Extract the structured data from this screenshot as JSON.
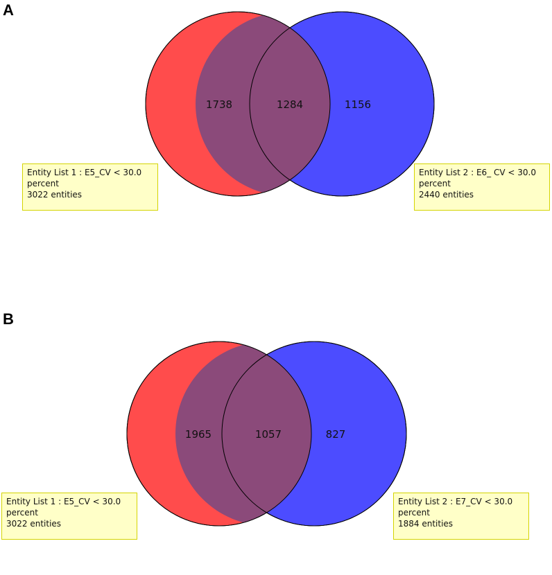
{
  "panels": [
    {
      "label": "A",
      "set1": {
        "color": "#ff4c4c",
        "name": "Entity List 1 : E5_CV < 30.0",
        "line2": "percent",
        "entities": "3022 entities"
      },
      "set2": {
        "color": "#4c4cff",
        "name": "Entity List 2 : E6_ CV < 30.0",
        "line2": "percent",
        "entities": "2440 entities"
      },
      "overlap_color": "#8b4a7a",
      "counts": {
        "only1": "1738",
        "both": "1284",
        "only2": "1156"
      }
    },
    {
      "label": "B",
      "set1": {
        "color": "#ff4c4c",
        "name": "Entity List 1 : E5_CV < 30.0",
        "line2": "percent",
        "entities": "3022 entities"
      },
      "set2": {
        "color": "#4c4cff",
        "name": "Entity List 2 : E7_CV < 30.0",
        "line2": "percent",
        "entities": "1884 entities"
      },
      "overlap_color": "#8b4a7a",
      "counts": {
        "only1": "1965",
        "both": "1057",
        "only2": "827"
      }
    }
  ]
}
